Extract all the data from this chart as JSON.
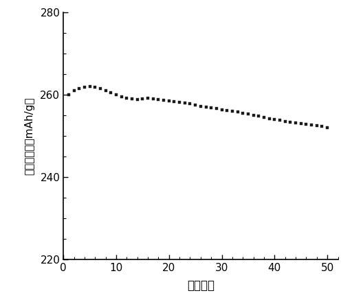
{
  "x": [
    1,
    2,
    3,
    4,
    5,
    6,
    7,
    8,
    9,
    10,
    11,
    12,
    13,
    14,
    15,
    16,
    17,
    18,
    19,
    20,
    21,
    22,
    23,
    24,
    25,
    26,
    27,
    28,
    29,
    30,
    31,
    32,
    33,
    34,
    35,
    36,
    37,
    38,
    39,
    40,
    41,
    42,
    43,
    44,
    45,
    46,
    47,
    48,
    49,
    50
  ],
  "y": [
    260.0,
    261.0,
    261.5,
    261.8,
    262.0,
    261.8,
    261.5,
    261.0,
    260.5,
    260.0,
    259.5,
    259.2,
    259.0,
    258.8,
    259.0,
    259.2,
    259.0,
    258.8,
    258.7,
    258.5,
    258.3,
    258.2,
    258.0,
    257.8,
    257.5,
    257.2,
    257.0,
    256.8,
    256.6,
    256.4,
    256.2,
    256.0,
    255.8,
    255.5,
    255.3,
    255.0,
    254.8,
    254.5,
    254.2,
    254.0,
    253.8,
    253.5,
    253.3,
    253.2,
    253.0,
    252.8,
    252.6,
    252.5,
    252.3,
    252.0
  ],
  "xlabel": "循环次数",
  "ylabel": "放电比容量（mAh/g）",
  "xlim": [
    0,
    52
  ],
  "ylim": [
    220,
    280
  ],
  "xticks": [
    0,
    10,
    20,
    30,
    40,
    50
  ],
  "yticks": [
    220,
    240,
    260,
    280
  ],
  "marker": "s",
  "marker_size": 3.5,
  "line_color": "#1a1a1a",
  "bg_color": "#ffffff",
  "figsize": [
    5.12,
    4.4
  ],
  "dpi": 100
}
